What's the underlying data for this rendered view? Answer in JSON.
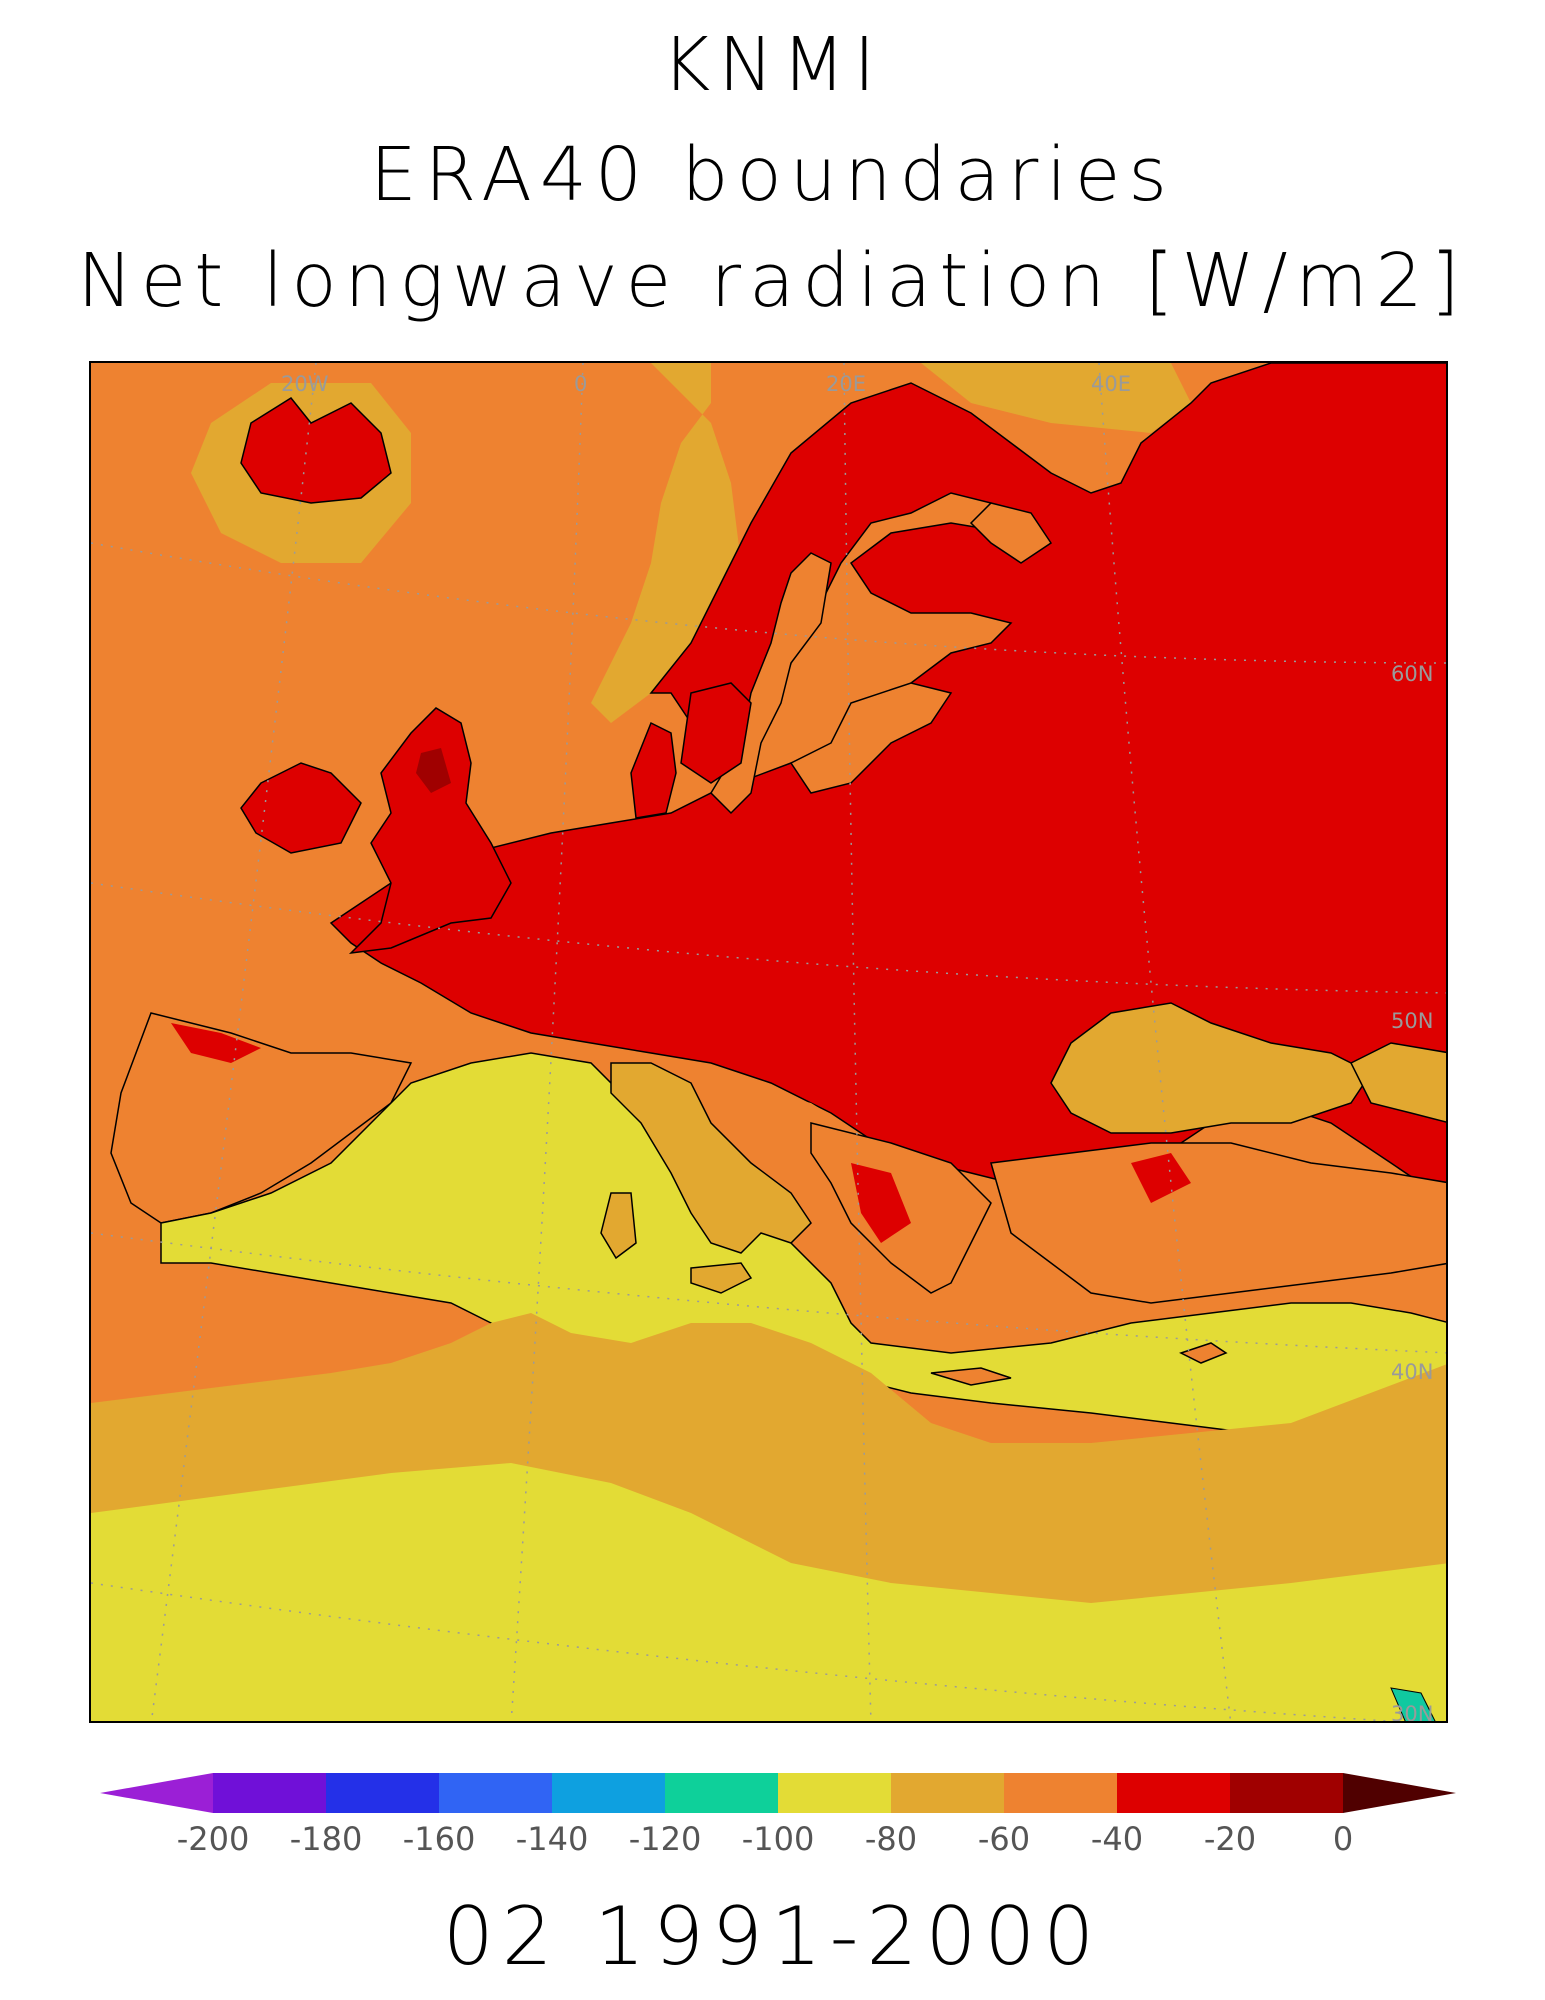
{
  "title": {
    "line1": "KNMI",
    "line2": "ERA40 boundaries",
    "line3": "Net longwave radiation [W/m2]"
  },
  "map": {
    "longitude_labels": [
      "20W",
      "0",
      "20E",
      "40E"
    ],
    "latitude_labels": [
      "60N",
      "50N",
      "40N",
      "30N"
    ],
    "colors": {
      "ocean_orange": "#ee8230",
      "land_red": "#dd0000",
      "dark_red": "#a00000",
      "gold": "#e2a830",
      "yellow": "#e3dc36",
      "teal": "#10c9a0",
      "gridline": "#9a9a9a",
      "coast": "#000000"
    }
  },
  "colorbar": {
    "ticks": [
      "-200",
      "-180",
      "-160",
      "-140",
      "-120",
      "-100",
      "-80",
      "-60",
      "-40",
      "-20",
      "0"
    ],
    "colors": [
      "#9b1fd6",
      "#7010d8",
      "#2430e8",
      "#3064f4",
      "#0ea0e0",
      "#0ed09a",
      "#e3dc36",
      "#e2a830",
      "#ee8230",
      "#dd0000",
      "#a00000",
      "#500000"
    ]
  },
  "period": "02 1991-2000"
}
